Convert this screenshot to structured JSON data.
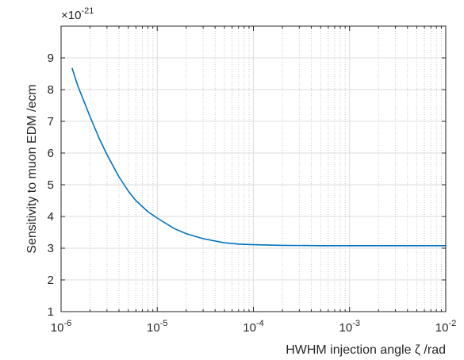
{
  "chart_data": {
    "type": "line",
    "title": "",
    "xlabel": "HWHM injection angle ζ /rad",
    "ylabel": "Sensitivity to muon EDM /ecm",
    "xscale": "log",
    "xlim": [
      1e-06,
      0.01
    ],
    "ylim": [
      1,
      10
    ],
    "y_multiplier": "×10",
    "y_multiplier_exponent": "-21",
    "grid": "on (major and minor, log x)",
    "legend": "none",
    "x_ticks": [
      {
        "mantissa": "10",
        "exp": "-6"
      },
      {
        "mantissa": "10",
        "exp": "-5"
      },
      {
        "mantissa": "10",
        "exp": "-4"
      },
      {
        "mantissa": "10",
        "exp": "-3"
      },
      {
        "mantissa": "10",
        "exp": "-2"
      }
    ],
    "y_ticks": [
      "1",
      "2",
      "3",
      "4",
      "5",
      "6",
      "7",
      "8",
      "9"
    ],
    "series": [
      {
        "color": "#0072BD",
        "x": [
          1.3e-06,
          1.5e-06,
          2e-06,
          2.5e-06,
          3e-06,
          4e-06,
          5e-06,
          6e-06,
          8e-06,
          1e-05,
          1.5e-05,
          2e-05,
          3e-05,
          5e-05,
          7e-05,
          0.0001,
          0.0002,
          0.0005,
          0.001,
          0.003,
          0.01
        ],
        "y": [
          8.68,
          8.1,
          7.15,
          6.45,
          5.95,
          5.25,
          4.8,
          4.5,
          4.15,
          3.95,
          3.62,
          3.46,
          3.3,
          3.17,
          3.13,
          3.11,
          3.09,
          3.08,
          3.08,
          3.08,
          3.08
        ]
      }
    ]
  }
}
